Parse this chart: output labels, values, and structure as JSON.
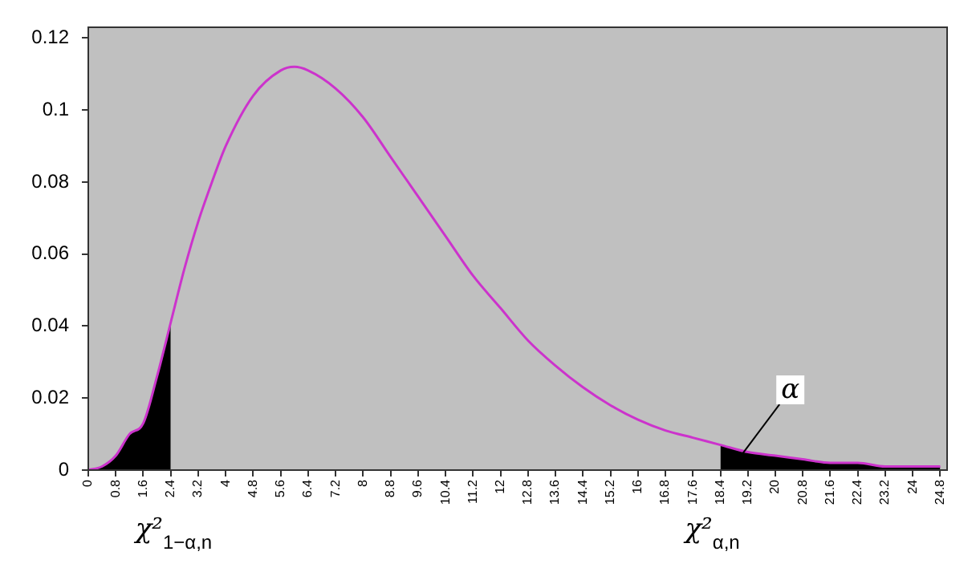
{
  "chart_data": {
    "type": "line",
    "marker": "none",
    "line_style": "solid",
    "grid": false,
    "legend": false,
    "xlim": [
      0,
      25
    ],
    "ylim": [
      0,
      0.123
    ],
    "xticks": [
      0,
      0.8,
      1.6,
      2.4,
      3.2,
      4,
      4.8,
      5.6,
      6.4,
      7.2,
      8,
      8.8,
      9.6,
      10.4,
      11.2,
      12,
      12.8,
      13.6,
      14.4,
      15.2,
      16,
      16.8,
      17.6,
      18.4,
      19.2,
      20,
      20.8,
      21.6,
      22.4,
      23.2,
      24,
      24.8
    ],
    "yticks": [
      0,
      0.02,
      0.04,
      0.06,
      0.08,
      0.1,
      0.12
    ],
    "series": [
      {
        "type": "area",
        "color": "#000000",
        "x": [
          0,
          0.4,
          0.8,
          1.2,
          1.6,
          2.0,
          2.4
        ],
        "values": [
          0,
          0.001,
          0.004,
          0.01,
          0.013,
          0.026,
          0.041
        ]
      },
      {
        "type": "area",
        "color": "#000000",
        "x": [
          18.4,
          19.2,
          20,
          20.8,
          21.6,
          22.4,
          23.2,
          24,
          24.8
        ],
        "values": [
          0.007,
          0.005,
          0.004,
          0.003,
          0.002,
          0.002,
          0.001,
          0.001,
          0.001
        ]
      },
      {
        "color": "#cc33cc",
        "x": [
          0,
          0.4,
          0.8,
          1.2,
          1.6,
          2.0,
          2.4,
          2.8,
          3.2,
          3.6,
          4,
          4.8,
          5.6,
          6,
          6.4,
          7.2,
          8,
          8.8,
          9.6,
          10.4,
          11.2,
          12,
          12.8,
          13.6,
          14.4,
          15.2,
          16,
          16.8,
          17.6,
          18.4,
          19.2,
          20,
          20.8,
          21.6,
          22.4,
          23.2,
          24,
          24.8
        ],
        "values": [
          0,
          0.001,
          0.004,
          0.01,
          0.013,
          0.026,
          0.041,
          0.056,
          0.069,
          0.08,
          0.09,
          0.104,
          0.111,
          0.112,
          0.111,
          0.106,
          0.098,
          0.087,
          0.076,
          0.065,
          0.054,
          0.045,
          0.036,
          0.029,
          0.023,
          0.018,
          0.014,
          0.011,
          0.009,
          0.007,
          0.005,
          0.004,
          0.003,
          0.002,
          0.002,
          0.001,
          0.001,
          0.001
        ]
      }
    ],
    "annotations": [
      "χ²$_{1−α,n}$",
      "χ²$_{α,n}$",
      {
        "text": "α",
        "x": 19.0,
        "y": 0.004
      }
    ]
  }
}
